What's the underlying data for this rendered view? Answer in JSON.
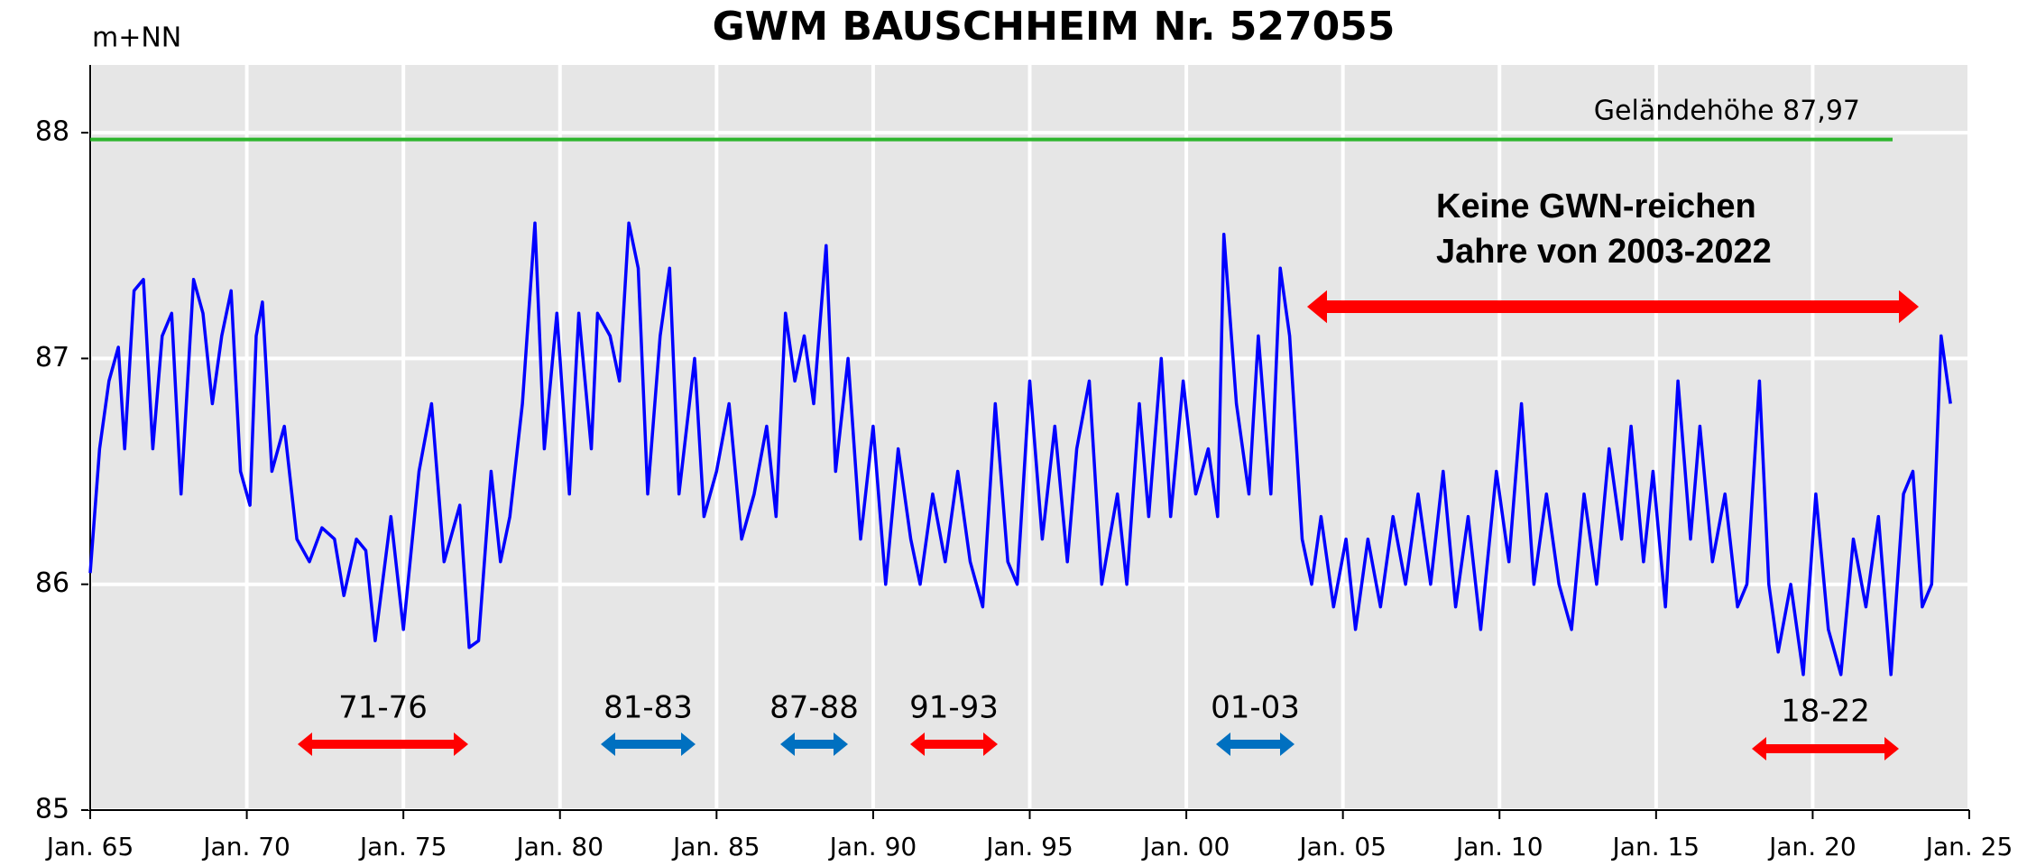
{
  "chart_data": {
    "type": "line",
    "title": "GWM BAUSCHHEIM  Nr. 527055",
    "y_label": "m+NN",
    "x": [
      1965.0,
      1965.3,
      1965.6,
      1965.9,
      1966.1,
      1966.4,
      1966.7,
      1967.0,
      1967.3,
      1967.6,
      1967.9,
      1968.3,
      1968.6,
      1968.9,
      1969.2,
      1969.5,
      1969.8,
      1970.1,
      1970.3,
      1970.5,
      1970.8,
      1971.2,
      1971.6,
      1972.0,
      1972.4,
      1972.8,
      1973.1,
      1973.5,
      1973.8,
      1974.1,
      1974.6,
      1975.0,
      1975.5,
      1975.9,
      1976.3,
      1976.8,
      1977.1,
      1977.4,
      1977.8,
      1978.1,
      1978.4,
      1978.8,
      1979.2,
      1979.5,
      1979.9,
      1980.3,
      1980.6,
      1981.0,
      1981.2,
      1981.6,
      1981.9,
      1982.2,
      1982.5,
      1982.8,
      1983.2,
      1983.5,
      1983.8,
      1984.3,
      1984.6,
      1985.0,
      1985.4,
      1985.8,
      1986.2,
      1986.6,
      1986.9,
      1987.2,
      1987.5,
      1987.8,
      1988.1,
      1988.5,
      1988.8,
      1989.2,
      1989.6,
      1990.0,
      1990.4,
      1990.8,
      1991.2,
      1991.5,
      1991.9,
      1992.3,
      1992.7,
      1993.1,
      1993.5,
      1993.9,
      1994.3,
      1994.6,
      1995.0,
      1995.4,
      1995.8,
      1996.2,
      1996.5,
      1996.9,
      1997.3,
      1997.8,
      1998.1,
      1998.5,
      1998.8,
      1999.2,
      1999.5,
      1999.9,
      2000.3,
      2000.7,
      2001.0,
      2001.2,
      2001.6,
      2002.0,
      2002.3,
      2002.7,
      2003.0,
      2003.3,
      2003.7,
      2004.0,
      2004.3,
      2004.7,
      2005.1,
      2005.4,
      2005.8,
      2006.2,
      2006.6,
      2007.0,
      2007.4,
      2007.8,
      2008.2,
      2008.6,
      2009.0,
      2009.4,
      2009.9,
      2010.3,
      2010.7,
      2011.1,
      2011.5,
      2011.9,
      2012.3,
      2012.7,
      2013.1,
      2013.5,
      2013.9,
      2014.2,
      2014.6,
      2014.9,
      2015.3,
      2015.7,
      2016.1,
      2016.4,
      2016.8,
      2017.2,
      2017.6,
      2017.9,
      2018.3,
      2018.6,
      2018.9,
      2019.3,
      2019.7,
      2020.1,
      2020.5,
      2020.9,
      2021.3,
      2021.7,
      2022.1,
      2022.5,
      2022.9,
      2023.2,
      2023.5,
      2023.8,
      2024.1,
      2024.4
    ],
    "series": [
      {
        "name": "GWM Bauschheim",
        "color": "#0000ff",
        "values": [
          86.05,
          86.6,
          86.9,
          87.05,
          86.6,
          87.3,
          87.35,
          86.6,
          87.1,
          87.2,
          86.4,
          87.35,
          87.2,
          86.8,
          87.1,
          87.3,
          86.5,
          86.35,
          87.1,
          87.25,
          86.5,
          86.7,
          86.2,
          86.1,
          86.25,
          86.2,
          85.95,
          86.2,
          86.15,
          85.75,
          86.3,
          85.8,
          86.5,
          86.8,
          86.1,
          86.35,
          85.72,
          85.75,
          86.5,
          86.1,
          86.3,
          86.8,
          87.6,
          86.6,
          87.2,
          86.4,
          87.2,
          86.6,
          87.2,
          87.1,
          86.9,
          87.6,
          87.4,
          86.4,
          87.1,
          87.4,
          86.4,
          87.0,
          86.3,
          86.5,
          86.8,
          86.2,
          86.4,
          86.7,
          86.3,
          87.2,
          86.9,
          87.1,
          86.8,
          87.5,
          86.5,
          87.0,
          86.2,
          86.7,
          86.0,
          86.6,
          86.2,
          86.0,
          86.4,
          86.1,
          86.5,
          86.1,
          85.9,
          86.8,
          86.1,
          86.0,
          86.9,
          86.2,
          86.7,
          86.1,
          86.6,
          86.9,
          86.0,
          86.4,
          86.0,
          86.8,
          86.3,
          87.0,
          86.3,
          86.9,
          86.4,
          86.6,
          86.3,
          87.55,
          86.8,
          86.4,
          87.1,
          86.4,
          87.4,
          87.1,
          86.2,
          86.0,
          86.3,
          85.9,
          86.2,
          85.8,
          86.2,
          85.9,
          86.3,
          86.0,
          86.4,
          86.0,
          86.5,
          85.9,
          86.3,
          85.8,
          86.5,
          86.1,
          86.8,
          86.0,
          86.4,
          86.0,
          85.8,
          86.4,
          86.0,
          86.6,
          86.2,
          86.7,
          86.1,
          86.5,
          85.9,
          86.9,
          86.2,
          86.7,
          86.1,
          86.4,
          85.9,
          86.0,
          86.9,
          86.0,
          85.7,
          86.0,
          85.6,
          86.4,
          85.8,
          85.6,
          86.2,
          85.9,
          86.3,
          85.6,
          86.4,
          86.5,
          85.9,
          86.0,
          87.1,
          86.8
        ]
      }
    ],
    "xlim": [
      1965,
      2025
    ],
    "xticks": [
      {
        "value": 1965,
        "label": "Jan. 65"
      },
      {
        "value": 1970,
        "label": "Jan. 70"
      },
      {
        "value": 1975,
        "label": "Jan. 75"
      },
      {
        "value": 1980,
        "label": "Jan. 80"
      },
      {
        "value": 1985,
        "label": "Jan. 85"
      },
      {
        "value": 1990,
        "label": "Jan. 90"
      },
      {
        "value": 1995,
        "label": "Jan. 95"
      },
      {
        "value": 2000,
        "label": "Jan. 00"
      },
      {
        "value": 2005,
        "label": "Jan. 05"
      },
      {
        "value": 2010,
        "label": "Jan. 10"
      },
      {
        "value": 2015,
        "label": "Jan. 15"
      },
      {
        "value": 2020,
        "label": "Jan. 20"
      },
      {
        "value": 2025,
        "label": "Jan. 25"
      }
    ],
    "ylim": [
      85,
      88.3
    ],
    "yticks": [
      85,
      86,
      87,
      88
    ],
    "grid": true,
    "threshold": {
      "label": "Geländehöhe 87,97",
      "value": 87.97,
      "color": "#2db52d"
    },
    "note": {
      "lines": [
        "Keine GWN-reichen",
        "Jahre von 2003-2022"
      ],
      "color": "#ff0000"
    },
    "periods": [
      {
        "text": "71-76",
        "color": "#ff0000"
      },
      {
        "text": "81-83",
        "color": "#0070c0"
      },
      {
        "text": "87-88",
        "color": "#0070c0"
      },
      {
        "text": "91-93",
        "color": "#ff0000"
      },
      {
        "text": "01-03",
        "color": "#0070c0"
      },
      {
        "text": "18-22",
        "color": "#ff0000"
      }
    ]
  }
}
